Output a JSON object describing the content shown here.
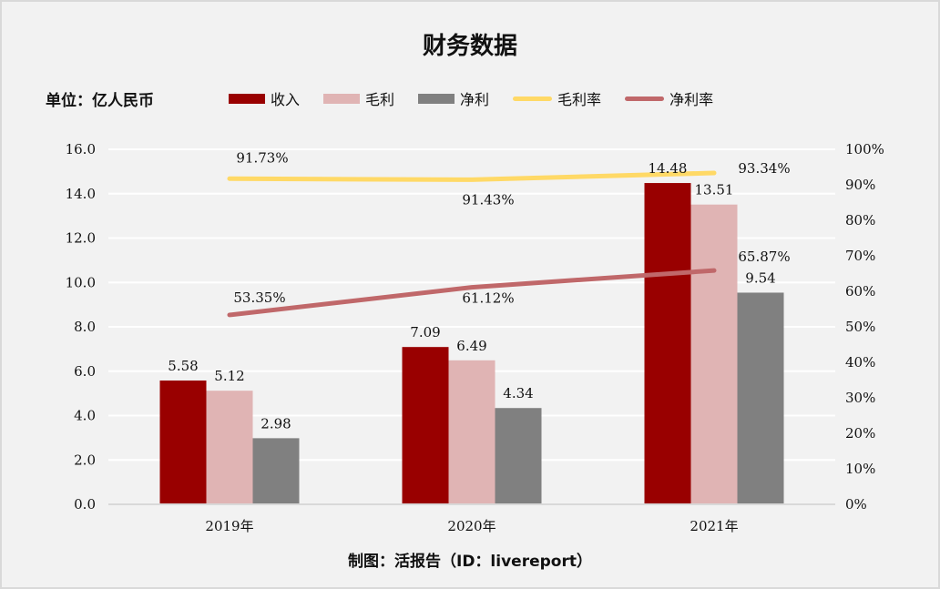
{
  "chart_data": {
    "type": "bar",
    "title": "财务数据",
    "unit_label": "单位：亿人民币",
    "footer": "制图：活报告（ID：livereport）",
    "categories": [
      "2019年",
      "2020年",
      "2021年"
    ],
    "series": [
      {
        "name": "收入",
        "type": "bar",
        "axis": "left",
        "color": "#990000",
        "values": [
          5.58,
          7.09,
          14.48
        ],
        "labels": [
          "5.58",
          "7.09",
          "14.48"
        ]
      },
      {
        "name": "毛利",
        "type": "bar",
        "axis": "left",
        "color": "#e0b4b4",
        "values": [
          5.12,
          6.49,
          13.51
        ],
        "labels": [
          "5.12",
          "6.49",
          "13.51"
        ]
      },
      {
        "name": "净利",
        "type": "bar",
        "axis": "left",
        "color": "#808080",
        "values": [
          2.98,
          4.34,
          9.54
        ],
        "labels": [
          "2.98",
          "4.34",
          "9.54"
        ]
      },
      {
        "name": "毛利率",
        "type": "line",
        "axis": "right",
        "color": "#ffd966",
        "values": [
          91.73,
          91.43,
          93.34
        ],
        "labels": [
          "91.73%",
          "91.43%",
          "93.34%"
        ]
      },
      {
        "name": "净利率",
        "type": "line",
        "axis": "right",
        "color": "#c0686a",
        "values": [
          53.35,
          61.12,
          65.87
        ],
        "labels": [
          "53.35%",
          "61.12%",
          "65.87%"
        ]
      }
    ],
    "y_left": {
      "min": 0,
      "max": 16,
      "step": 2,
      "ticks": [
        "0.0",
        "2.0",
        "4.0",
        "6.0",
        "8.0",
        "10.0",
        "12.0",
        "14.0",
        "16.0"
      ]
    },
    "y_right": {
      "min": 0,
      "max": 100,
      "step": 10,
      "ticks": [
        "0%",
        "10%",
        "20%",
        "30%",
        "40%",
        "50%",
        "60%",
        "70%",
        "80%",
        "90%",
        "100%"
      ]
    },
    "grid": true,
    "legend_position": "top"
  }
}
